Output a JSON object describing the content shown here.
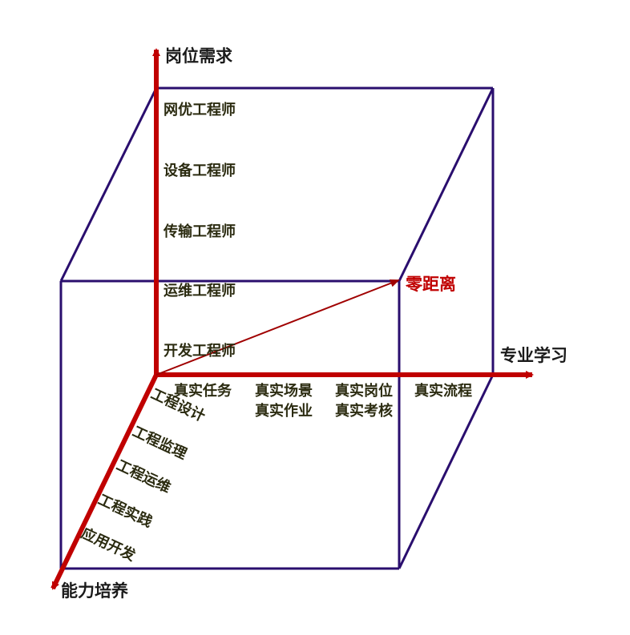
{
  "axes": {
    "vertical": {
      "title": "岗位需求"
    },
    "horizontal": {
      "title": "专业学习"
    },
    "diagonal": {
      "title": "能力培养"
    }
  },
  "vertical_labels": [
    "网优工程师",
    "设备工程师",
    "传输工程师",
    "运维工程师",
    "开发工程师"
  ],
  "horizontal_labels_row1": [
    "真实任务",
    "真实场景",
    "真实岗位",
    "真实流程"
  ],
  "horizontal_labels_row2": [
    "真实作业",
    "真实考核"
  ],
  "diagonal_labels": [
    "工程设计",
    "工程监理",
    "工程运维",
    "工程实践",
    "应用开发"
  ],
  "target": {
    "label": "零距离"
  },
  "colors": {
    "cube": "#2a0e6e",
    "axis": "#c00000",
    "vector": "#a00000"
  }
}
